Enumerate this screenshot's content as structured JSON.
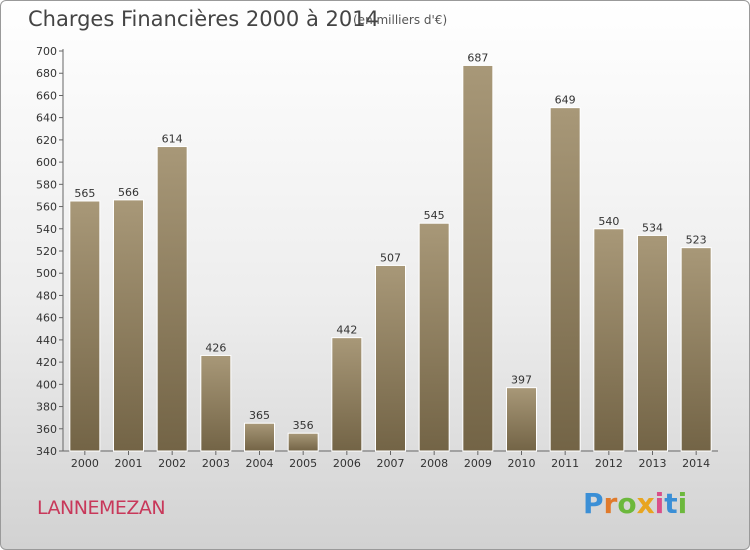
{
  "header": {
    "title": "Charges Financières 2000 à 2014",
    "unit": "(en milliers d'€)"
  },
  "footer": {
    "city": "LANNEMEZAN",
    "logo_letters": [
      {
        "ch": "P",
        "color": "#3b8fd6"
      },
      {
        "ch": "r",
        "color": "#e07a2b"
      },
      {
        "ch": "o",
        "color": "#6cb83c"
      },
      {
        "ch": "x",
        "color": "#e8a520"
      },
      {
        "ch": "i",
        "color": "#d94f8a"
      },
      {
        "ch": "t",
        "color": "#3b8fd6"
      },
      {
        "ch": "i",
        "color": "#6cb83c"
      }
    ]
  },
  "chart_data": {
    "type": "bar",
    "title": "Charges Financières 2000 à 2014",
    "subtitle": "(en milliers d'€)",
    "categories": [
      "2000",
      "2001",
      "2002",
      "2003",
      "2004",
      "2005",
      "2006",
      "2007",
      "2008",
      "2009",
      "2010",
      "2011",
      "2012",
      "2013",
      "2014"
    ],
    "values": [
      565,
      566,
      614,
      426,
      365,
      356,
      442,
      507,
      545,
      687,
      397,
      649,
      540,
      534,
      523
    ],
    "ylim": [
      340,
      700
    ],
    "ytick_step": 20,
    "grid": false,
    "bar_color_top": "#a89878",
    "bar_color_bottom": "#736446",
    "axis_color": "#666666"
  }
}
